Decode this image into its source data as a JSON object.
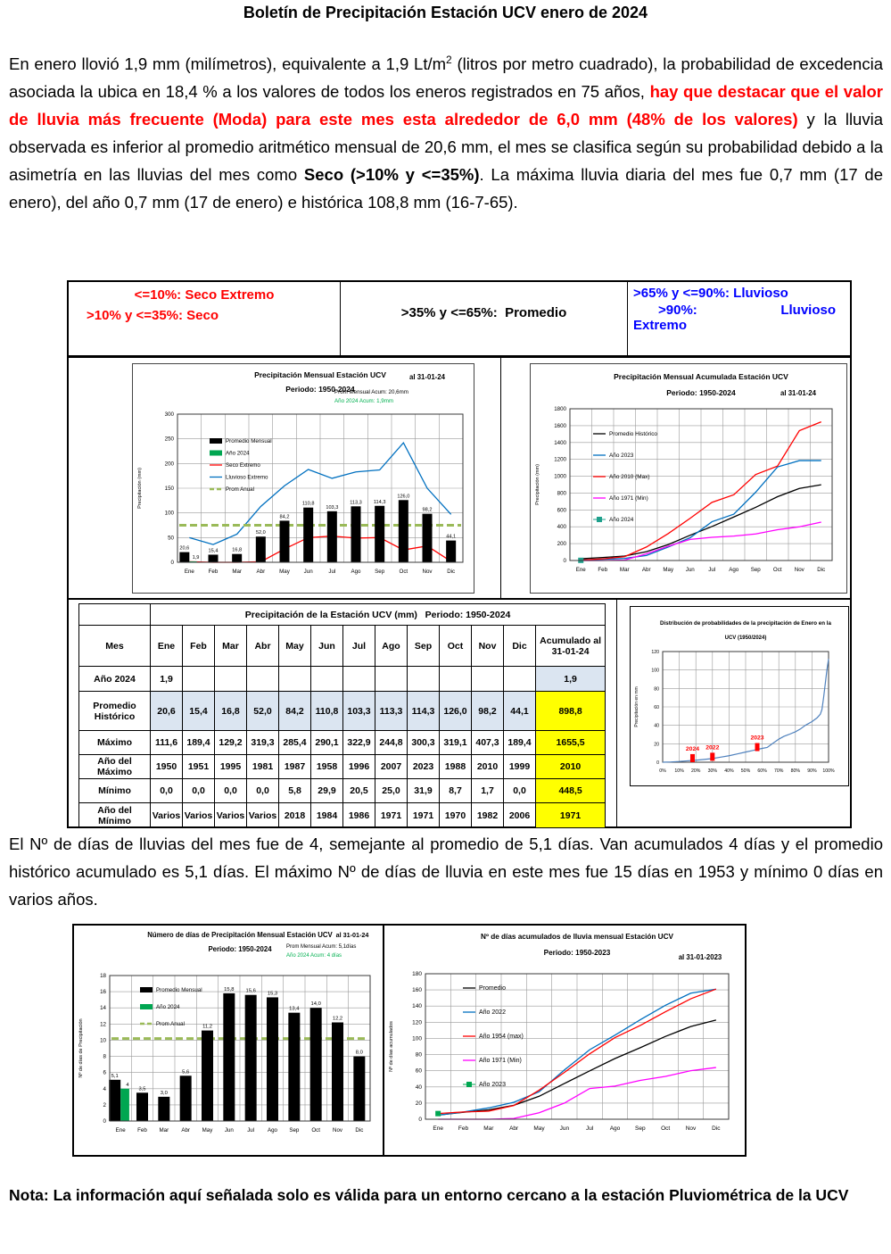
{
  "page": {
    "title": "Boletín de Precipitación Estación UCV enero de 2024",
    "note": "Nota: La información aquí señalada solo es válida para un entorno cercano a la estación Pluviométrica de la UCV"
  },
  "intro": {
    "seg1": "En enero llovió 1,9 mm (milímetros), equivalente a 1,9 Lt/m",
    "sup": "2",
    "seg2": " (litros por metro cuadrado), la probabilidad de excedencia asociada la ubica en 18,4 % a los valores de todos los eneros registrados en 75 años, ",
    "seg3_red": "hay que destacar que el valor de lluvia más frecuente (Moda) para este mes esta alrededor de 6,0 mm (48% de los valores)",
    "seg4": " y la lluvia observada es inferior al promedio aritmético mensual de 20,6 mm, el mes se clasifica según su probabilidad debido a la asimetría en las lluvias del mes como ",
    "seg5_bold": "Seco (>10% y <=35%)",
    "seg6": ". La máxima lluvia diaria del mes fue 0,7 mm (17 de enero), del año 0,7 mm (17 de enero) e histórica 108,8 mm (16-7-65)."
  },
  "days_paragraph": "El Nº de días de lluvias del mes fue de 4, semejante al promedio de 5,1 días. Van acumulados 4 días y el promedio histórico acumulado es 5,1 días. El máximo Nº de días de lluvia en este mes fue 15 días en 1953 y mínimo 0 días en varios años.",
  "classification": {
    "dry": {
      "line1": "<=10%:  Seco Extremo",
      "line2": ">10% y <=35%:  Seco",
      "color": "#ff0000"
    },
    "average": {
      "line1": ">35% y <=65%:  Promedio",
      "color": "#000000"
    },
    "wet": {
      "line1": ">65% y <=90%: Lluvioso",
      "line2a": ">90%:",
      "line2b": "Lluvioso",
      "line3": "Extremo",
      "color": "#0000ff"
    }
  },
  "table": {
    "title": "Precipitación de la Estación UCV (mm)   Periodo: 1950-2024",
    "col_month": "Mes",
    "col_acum": "Acumulado al 31-01-24",
    "months": [
      "Ene",
      "Feb",
      "Mar",
      "Abr",
      "May",
      "Jun",
      "Jul",
      "Ago",
      "Sep",
      "Oct",
      "Nov",
      "Dic"
    ],
    "colors": {
      "light_blue": "#dbe5f1",
      "yellow": "#ffff00"
    },
    "rows": [
      {
        "label": "Año 2024",
        "cells": [
          "1,9",
          "",
          "",
          "",
          "",
          "",
          "",
          "",
          "",
          "",
          "",
          ""
        ],
        "acum": "1,9",
        "acum_bg": "#dbe5f1",
        "cells_bg": ""
      },
      {
        "label": "Promedio Histórico",
        "cells": [
          "20,6",
          "15,4",
          "16,8",
          "52,0",
          "84,2",
          "110,8",
          "103,3",
          "113,3",
          "114,3",
          "126,0",
          "98,2",
          "44,1"
        ],
        "acum": "898,8",
        "acum_bg": "#ffff00",
        "cells_bg": "#dbe5f1"
      },
      {
        "label": "Máximo",
        "cells": [
          "111,6",
          "189,4",
          "129,2",
          "319,3",
          "285,4",
          "290,1",
          "322,9",
          "244,8",
          "300,3",
          "319,1",
          "407,3",
          "189,4"
        ],
        "acum": "1655,5",
        "acum_bg": "#ffff00",
        "cells_bg": ""
      },
      {
        "label": "Año del Máximo",
        "cells": [
          "1950",
          "1951",
          "1995",
          "1981",
          "1987",
          "1958",
          "1996",
          "2007",
          "2023",
          "1988",
          "2010",
          "1999"
        ],
        "acum": "2010",
        "acum_bg": "#ffff00",
        "cells_bg": ""
      },
      {
        "label": "Mínimo",
        "cells": [
          "0,0",
          "0,0",
          "0,0",
          "0,0",
          "5,8",
          "29,9",
          "20,5",
          "25,0",
          "31,9",
          "8,7",
          "1,7",
          "0,0"
        ],
        "acum": "448,5",
        "acum_bg": "#ffff00",
        "cells_bg": ""
      },
      {
        "label": "Año del Mínimo",
        "cells": [
          "Varios",
          "Varios",
          "Varios",
          "Varios",
          "2018",
          "1984",
          "1986",
          "1971",
          "1971",
          "1970",
          "1982",
          "2006"
        ],
        "acum": "1971",
        "acum_bg": "#ffff00",
        "cells_bg": ""
      }
    ]
  },
  "chart_data": [
    {
      "id": "monthly_precip",
      "type": "category",
      "title_lines": [
        "Precipitación Mensual Estación UCV",
        "Periodo: 1950-2024"
      ],
      "as_of": "al 31-01-24",
      "annotations": [
        "Prom Mensual Acum: 20,6mm",
        "Año 2024 Acum: 1,9mm"
      ],
      "annotation_colors": [
        "#000000",
        "#00b050"
      ],
      "categories": [
        "Ene",
        "Feb",
        "Mar",
        "Abr",
        "May",
        "Jun",
        "Jul",
        "Ago",
        "Sep",
        "Oct",
        "Nov",
        "Dic"
      ],
      "ylabel": "Precipitación (mm)",
      "ylim": [
        0,
        300
      ],
      "ystep": 50,
      "series": [
        {
          "name": "Promedio Mensual",
          "type": "bar",
          "color": "#000000",
          "values": [
            20.6,
            15.4,
            16.8,
            52,
            84.2,
            110.8,
            103.3,
            113.3,
            114.3,
            126,
            98.2,
            44.1
          ],
          "labels": [
            "20,6",
            "15,4",
            "16,8",
            "52,0",
            "84,2",
            "110,8",
            "103,3",
            "113,3",
            "114,3",
            "126,0",
            "98,2",
            "44,1"
          ]
        },
        {
          "name": "Año 2024",
          "type": "bar",
          "color": "#00a651",
          "values": [
            1.9,
            null,
            null,
            null,
            null,
            null,
            null,
            null,
            null,
            null,
            null,
            null
          ],
          "labels": [
            "1,9",
            null,
            null,
            null,
            null,
            null,
            null,
            null,
            null,
            null,
            null,
            null
          ]
        },
        {
          "name": "Seco Extremo",
          "type": "line",
          "color": "#ff0000",
          "values": [
            1,
            0,
            0,
            1,
            27,
            50,
            53,
            49,
            50,
            25,
            33,
            2
          ]
        },
        {
          "name": "Lluvioso Extremo",
          "type": "line",
          "color": "#0070c0",
          "values": [
            50,
            36,
            57,
            113,
            155,
            188,
            170,
            183,
            187,
            242,
            150,
            97
          ]
        },
        {
          "name": "Prom Anual",
          "type": "hline",
          "color": "#9aba58",
          "values": 74.9
        }
      ]
    },
    {
      "id": "accum_precip",
      "type": "category",
      "title_lines": [
        "Precipitación Mensual Acumulada Estación UCV",
        "Periodo:  1950-2024"
      ],
      "as_of": "al 31-01-24",
      "annotations": [],
      "annotation_colors": [],
      "categories": [
        "Ene",
        "Feb",
        "Mar",
        "Abr",
        "May",
        "Jun",
        "Jul",
        "Ago",
        "Sep",
        "Oct",
        "Nov",
        "Dic"
      ],
      "ylabel": "Precipitación (mm)",
      "ylim": [
        0,
        1800
      ],
      "ystep": 200,
      "series": [
        {
          "name": "Promedio Histórico",
          "type": "line",
          "color": "#000000",
          "values": [
            20.6,
            36,
            52.8,
            104.8,
            189,
            299.8,
            403.1,
            516.4,
            630.7,
            756.7,
            854.9,
            898.8
          ]
        },
        {
          "name": "Año 2023",
          "type": "line",
          "color": "#0070c0",
          "values": [
            5,
            15,
            25,
            60,
            160,
            270,
            460,
            550,
            810,
            1110,
            1185,
            1185
          ]
        },
        {
          "name": "Año 2010 (Max)",
          "type": "line",
          "color": "#ff0000",
          "values": [
            5,
            20,
            45,
            160,
            320,
            500,
            690,
            780,
            1020,
            1120,
            1540,
            1645
          ]
        },
        {
          "name": "Año 1971 (Min)",
          "type": "line",
          "color": "#ff00ff",
          "values": [
            0,
            0,
            5,
            80,
            170,
            250,
            275,
            290,
            315,
            365,
            400,
            455
          ]
        },
        {
          "name": "Año 2024",
          "type": "marker",
          "color": "#1fa08c",
          "values": [
            1.9
          ]
        }
      ]
    },
    {
      "id": "days_monthly",
      "type": "category",
      "title_lines": [
        "Número de días de Precipitación Mensual Estación UCV",
        "Periodo: 1950-2024"
      ],
      "as_of": "al 31-01-24",
      "annotations": [
        "Prom Mensual Acum: 5,1días",
        "Año 2024 Acum: 4 días"
      ],
      "annotation_colors": [
        "#000000",
        "#00b050"
      ],
      "categories": [
        "Ene",
        "Feb",
        "Mar",
        "Abr",
        "May",
        "Jun",
        "Jul",
        "Ago",
        "Sep",
        "Oct",
        "Nov",
        "Dic"
      ],
      "ylabel": "Nº de días de Precipitación",
      "ylim": [
        0,
        18
      ],
      "ystep": 2,
      "series": [
        {
          "name": "Promedio Mensual",
          "type": "bar",
          "color": "#000000",
          "values": [
            5.1,
            3.5,
            3,
            5.6,
            11.2,
            15.8,
            15.6,
            15.3,
            13.4,
            14,
            12.2,
            8
          ],
          "labels": [
            "5,1",
            "3,5",
            "3,0",
            "5,6",
            "11,2",
            "15,8",
            "15,6",
            "15,3",
            "13,4",
            "14,0",
            "12,2",
            "8,0"
          ]
        },
        {
          "name": "Año 2024",
          "type": "bar",
          "color": "#00a651",
          "values": [
            4,
            null,
            null,
            null,
            null,
            null,
            null,
            null,
            null,
            null,
            null,
            null
          ],
          "labels": [
            "4",
            null,
            null,
            null,
            null,
            null,
            null,
            null,
            null,
            null,
            null,
            null
          ]
        },
        {
          "name": "Prom Anual",
          "type": "hline",
          "color": "#9aba58",
          "values": 10.2
        }
      ]
    },
    {
      "id": "days_accum",
      "type": "category",
      "title_lines": [
        "Nº de días acumulados de lluvia mensual Estación UCV",
        "Periodo:  1950-2023"
      ],
      "as_of": "al 31-01-2023",
      "annotations": [],
      "annotation_colors": [],
      "categories": [
        "Ene",
        "Feb",
        "Mar",
        "Abr",
        "May",
        "Jun",
        "Jul",
        "Ago",
        "Sep",
        "Oct",
        "Nov",
        "Dic"
      ],
      "ylabel": "Nº de días acumulados",
      "ylim": [
        0,
        180
      ],
      "ystep": 20,
      "series": [
        {
          "name": "Promedio",
          "type": "line",
          "color": "#000000",
          "values": [
            5.1,
            8.6,
            11.6,
            17.2,
            28.4,
            44.2,
            59.8,
            75.1,
            88.5,
            102.5,
            114.7,
            122.7
          ]
        },
        {
          "name": "Año 2022",
          "type": "line",
          "color": "#0070c0",
          "values": [
            5,
            9,
            14,
            21,
            34,
            61,
            86,
            104,
            123,
            141,
            156,
            161
          ]
        },
        {
          "name": "Año 1954 (max)",
          "type": "line",
          "color": "#ff0000",
          "values": [
            7,
            9,
            10,
            17,
            36,
            58,
            81,
            101,
            116,
            133,
            149,
            161
          ]
        },
        {
          "name": "Año 1971 (Min)",
          "type": "line",
          "color": "#ff00ff",
          "values": [
            0,
            0,
            0,
            1,
            8,
            20,
            38,
            41,
            48,
            53,
            60,
            64
          ]
        },
        {
          "name": "Año 2023",
          "type": "marker",
          "color": "#00a651",
          "values": [
            7
          ]
        }
      ]
    },
    {
      "id": "probability_distribution",
      "type": "xy",
      "title_lines": [
        "Distribución de probabilidades de la precipitación de Enero en la",
        "UCV (1950/2024)"
      ],
      "ylabel": "Precipitación en mm",
      "xlim": [
        0,
        100
      ],
      "xstep": 10,
      "xsuffix": "%",
      "ylim": [
        0,
        120
      ],
      "ystep": 20,
      "curve_color": "#4f81bd",
      "curve": [
        [
          0,
          0
        ],
        [
          5,
          0.3
        ],
        [
          10,
          0.8
        ],
        [
          15,
          1.5
        ],
        [
          20,
          2.2
        ],
        [
          25,
          3
        ],
        [
          30,
          4
        ],
        [
          35,
          5.5
        ],
        [
          40,
          7
        ],
        [
          45,
          9
        ],
        [
          50,
          11
        ],
        [
          55,
          13
        ],
        [
          60,
          15
        ],
        [
          63,
          16
        ],
        [
          66,
          20
        ],
        [
          70,
          25
        ],
        [
          73,
          28
        ],
        [
          76,
          30
        ],
        [
          80,
          33
        ],
        [
          83,
          36
        ],
        [
          86,
          40
        ],
        [
          90,
          44
        ],
        [
          93,
          48
        ],
        [
          95,
          52
        ],
        [
          96,
          57
        ],
        [
          97,
          70
        ],
        [
          98,
          85
        ],
        [
          99,
          100
        ],
        [
          100,
          112
        ]
      ],
      "markers": [
        {
          "label": "2024",
          "x": 18,
          "y": 2
        },
        {
          "label": "2022",
          "x": 30,
          "y": 3.5
        },
        {
          "label": "2023",
          "x": 57,
          "y": 14
        }
      ],
      "marker_color": "#ff0000"
    }
  ]
}
